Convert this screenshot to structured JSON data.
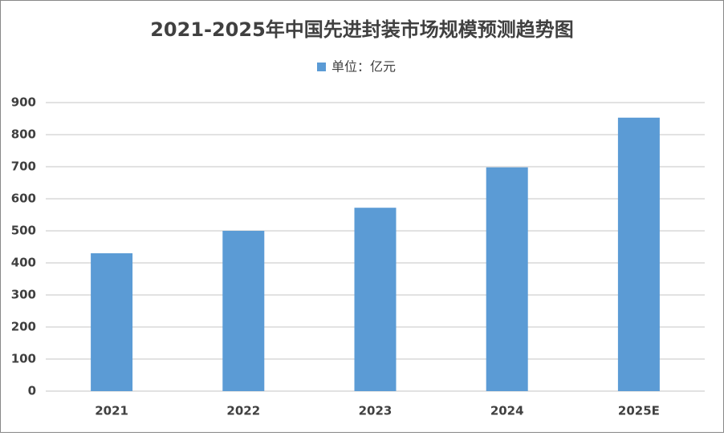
{
  "chart_data": {
    "type": "bar",
    "title": "2021-2025年中国先进封装市场规模预测趋势图",
    "categories": [
      "2021",
      "2022",
      "2023",
      "2024",
      "2025E"
    ],
    "series": [
      {
        "name": "单位：亿元",
        "color": "#5b9bd5",
        "values": [
          430,
          500,
          572,
          698,
          853
        ]
      }
    ],
    "ylim": [
      0,
      900
    ],
    "yticks": [
      0,
      100,
      200,
      300,
      400,
      500,
      600,
      700,
      800,
      900
    ],
    "grid": true,
    "legend": "top"
  }
}
